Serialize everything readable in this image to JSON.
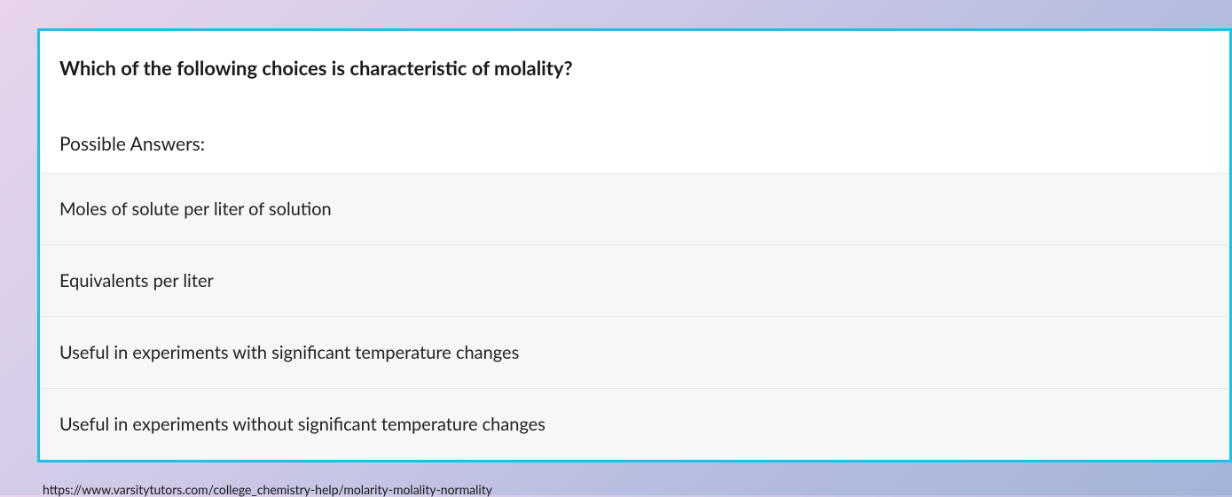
{
  "card": {
    "border_color": "#1ec0e8",
    "background_color": "#ffffff"
  },
  "question": {
    "text": "Which of the following choices is characteristic of molality?",
    "font_size": 22,
    "font_weight": 700,
    "color": "#1a1a1a"
  },
  "answers_header": {
    "text": "Possible Answers:",
    "font_size": 21,
    "color": "#222222"
  },
  "answers": [
    {
      "text": "Moles of solute per liter of solution"
    },
    {
      "text": "Equivalents per liter"
    },
    {
      "text": "Useful in experiments with significant temperature changes"
    },
    {
      "text": "Useful in experiments without significant temperature changes"
    }
  ],
  "answer_style": {
    "font_size": 20,
    "color": "#222222",
    "background_color": "#f7f7f7",
    "border_color": "#e8e8e8"
  },
  "source": {
    "url": "https://www.varsitytutors.com/college_chemistry-help/molarity-molality-normality",
    "font_size": 14,
    "color": "#1a1a1a"
  },
  "page_background": {
    "gradient_start": "#e8d4ec",
    "gradient_mid1": "#d4cce8",
    "gradient_mid2": "#b4bce0",
    "gradient_end": "#a4b4d8"
  }
}
